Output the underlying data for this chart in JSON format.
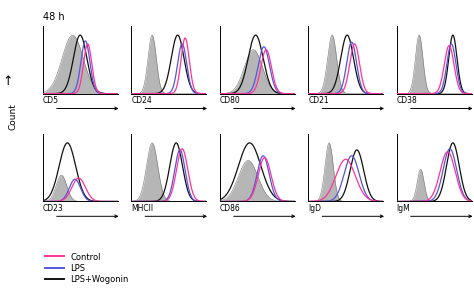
{
  "title": "48 h",
  "ylabel": "Count",
  "panels_row1": [
    "CD5",
    "CD24",
    "CD80",
    "CD21",
    "CD38"
  ],
  "panels_row2": [
    "CD23",
    "MHCII",
    "CD86",
    "IgD",
    "IgM"
  ],
  "colors": {
    "gray_fill": "#aaaaaa",
    "control": "#ff3399",
    "lps": "#5555dd",
    "wogonin": "#111111"
  },
  "legend": [
    "Control",
    "LPS",
    "LPS+Wogonin"
  ],
  "legend_colors": [
    "#ff3399",
    "#5555dd",
    "#111111"
  ],
  "panel_data": {
    "CD5": {
      "gray": [
        [
          4.0,
          1.4,
          1.0
        ]
      ],
      "control": [
        [
          6.0,
          0.55,
          0.85
        ]
      ],
      "lps": [
        [
          5.7,
          0.6,
          0.9
        ]
      ],
      "wogonin": [
        [
          5.0,
          0.9,
          1.0
        ]
      ]
    },
    "CD24": {
      "gray": [
        [
          2.8,
          0.55,
          1.0
        ]
      ],
      "control": [
        [
          7.2,
          0.55,
          0.95
        ]
      ],
      "lps": [
        [
          6.8,
          0.6,
          0.85
        ]
      ],
      "wogonin": [
        [
          6.2,
          0.85,
          1.0
        ]
      ]
    },
    "CD80": {
      "gray": [
        [
          4.5,
          1.2,
          0.75
        ]
      ],
      "control": [
        [
          6.2,
          0.7,
          0.75
        ]
      ],
      "lps": [
        [
          5.9,
          0.75,
          0.8
        ]
      ],
      "wogonin": [
        [
          4.8,
          1.0,
          1.0
        ]
      ]
    },
    "CD21": {
      "gray": [
        [
          3.2,
          0.6,
          1.0
        ]
      ],
      "control": [
        [
          6.2,
          0.65,
          0.85
        ]
      ],
      "lps": [
        [
          5.8,
          0.65,
          0.88
        ]
      ],
      "wogonin": [
        [
          5.2,
          0.85,
          1.0
        ]
      ]
    },
    "CD38": {
      "gray": [
        [
          3.0,
          0.5,
          1.0
        ]
      ],
      "control": [
        [
          7.0,
          0.65,
          0.82
        ]
      ],
      "lps": [
        [
          7.3,
          0.6,
          0.85
        ]
      ],
      "wogonin": [
        [
          7.5,
          0.55,
          1.0
        ]
      ]
    },
    "CD23": {
      "gray": [
        [
          2.5,
          0.7,
          0.45
        ]
      ],
      "control": [
        [
          4.8,
          0.9,
          0.4
        ]
      ],
      "lps": [
        [
          4.3,
          0.75,
          0.38
        ]
      ],
      "wogonin": [
        [
          3.3,
          1.1,
          1.0
        ]
      ]
    },
    "MHCII": {
      "gray": [
        [
          2.8,
          0.75,
          1.0
        ]
      ],
      "control": [
        [
          6.8,
          0.75,
          0.9
        ]
      ],
      "lps": [
        [
          6.5,
          0.7,
          0.88
        ]
      ],
      "wogonin": [
        [
          6.0,
          0.85,
          1.0
        ]
      ]
    },
    "CD86": {
      "gray": [
        [
          3.8,
          1.3,
          0.7
        ]
      ],
      "control": [
        [
          6.0,
          0.85,
          0.75
        ]
      ],
      "lps": [
        [
          5.8,
          0.8,
          0.78
        ]
      ],
      "wogonin": [
        [
          4.0,
          1.5,
          1.0
        ]
      ]
    },
    "IgD": {
      "gray": [
        [
          2.8,
          0.55,
          1.0
        ]
      ],
      "control": [
        [
          5.0,
          1.3,
          0.72
        ]
      ],
      "lps": [
        [
          5.8,
          1.0,
          0.78
        ]
      ],
      "wogonin": [
        [
          6.5,
          0.9,
          0.88
        ]
      ]
    },
    "IgM": {
      "gray": [
        [
          3.2,
          0.45,
          0.55
        ]
      ],
      "control": [
        [
          6.8,
          1.0,
          0.85
        ]
      ],
      "lps": [
        [
          7.1,
          0.9,
          0.9
        ]
      ],
      "wogonin": [
        [
          7.5,
          0.85,
          1.0
        ]
      ]
    }
  }
}
